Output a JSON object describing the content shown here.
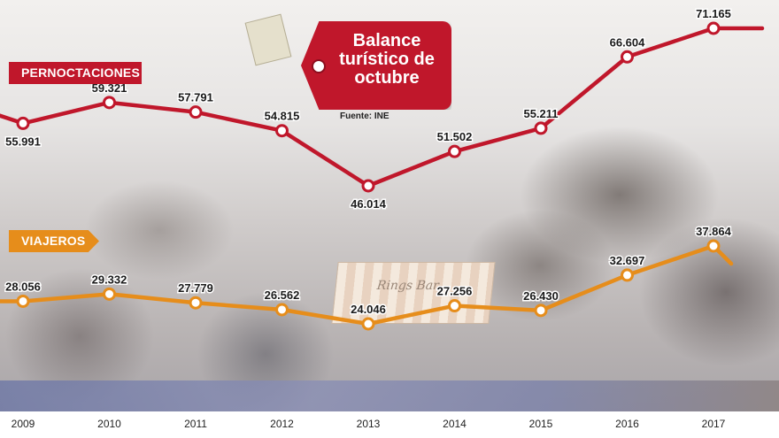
{
  "title": "Balance turístico de octubre",
  "source": "Fuente: INE",
  "series_labels": {
    "pernoctaciones": "PERNOCTACIONES",
    "viajeros": "VIAJEROS"
  },
  "booth_sign_text": "Rings Bar",
  "colors": {
    "pernoctaciones": "#c0172b",
    "viajeros": "#e68d1b",
    "axis_text": "#222222"
  },
  "chart_data": {
    "type": "line",
    "x": [
      "2009",
      "2010",
      "2011",
      "2012",
      "2013",
      "2014",
      "2015",
      "2016",
      "2017"
    ],
    "series": [
      {
        "name": "PERNOCTACIONES",
        "values": [
          55991,
          59321,
          57791,
          54815,
          46014,
          51502,
          55211,
          66604,
          71165
        ],
        "labels": [
          "55.991",
          "59.321",
          "57.791",
          "54.815",
          "46.014",
          "51.502",
          "55.211",
          "66.604",
          "71.165"
        ]
      },
      {
        "name": "VIAJEROS",
        "values": [
          28056,
          29332,
          27779,
          26562,
          24046,
          27256,
          26430,
          32697,
          37864
        ],
        "labels": [
          "28.056",
          "29.332",
          "27.779",
          "26.562",
          "24.046",
          "27.256",
          "26.430",
          "32.697",
          "37.864"
        ]
      }
    ],
    "title": "Balance turístico de octubre",
    "xlabel": "",
    "ylabel": "",
    "grid": false,
    "legend": "inline labels"
  }
}
